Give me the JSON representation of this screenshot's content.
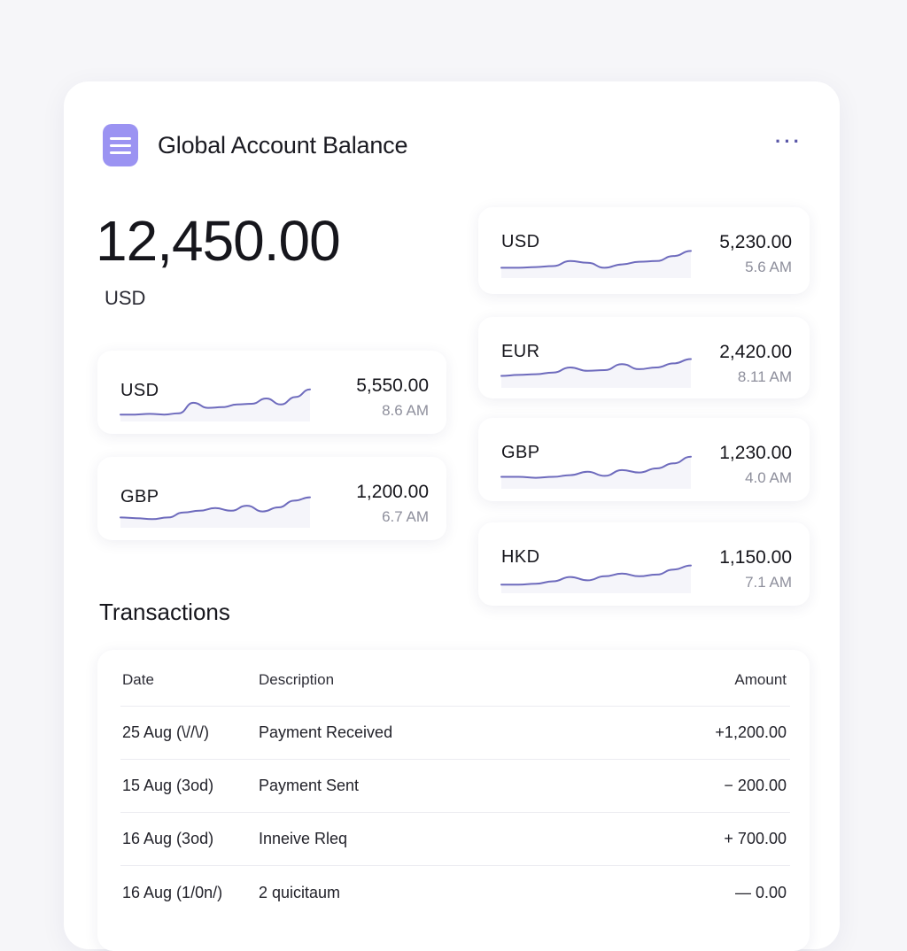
{
  "header": {
    "title": "Global Account Balance",
    "app_icon": "menu-icon",
    "more_icon": "more-horizontal-icon",
    "more_label": "···"
  },
  "balance": {
    "amount": "12,450.00",
    "currency": "USD"
  },
  "accent_color": "#9b93f2",
  "sparkline_color": "#6e6bbd",
  "currencies_left": [
    {
      "code": "USD",
      "amount": "5,550.00",
      "time": "8.6 AM",
      "trend": [
        0.1,
        0.1,
        0.12,
        0.1,
        0.14,
        0.45,
        0.3,
        0.32,
        0.4,
        0.42,
        0.58,
        0.4,
        0.62,
        0.85
      ]
    },
    {
      "code": "GBP",
      "amount": "1,200.00",
      "time": "6.7 AM",
      "trend": [
        0.2,
        0.18,
        0.15,
        0.2,
        0.35,
        0.4,
        0.48,
        0.4,
        0.55,
        0.38,
        0.5,
        0.7,
        0.8
      ]
    }
  ],
  "currencies_right": [
    {
      "code": "USD",
      "amount": "5,230.00",
      "time": "5.6 AM",
      "trend": [
        0.2,
        0.2,
        0.22,
        0.25,
        0.4,
        0.35,
        0.2,
        0.3,
        0.38,
        0.4,
        0.55,
        0.7
      ]
    },
    {
      "code": "EUR",
      "amount": "2,420.00",
      "time": "8.11 AM",
      "trend": [
        0.25,
        0.28,
        0.3,
        0.35,
        0.5,
        0.4,
        0.42,
        0.6,
        0.45,
        0.5,
        0.62,
        0.75
      ]
    },
    {
      "code": "GBP",
      "amount": "1,230.00",
      "time": "4.0 AM",
      "trend": [
        0.25,
        0.25,
        0.22,
        0.25,
        0.3,
        0.4,
        0.28,
        0.45,
        0.38,
        0.5,
        0.65,
        0.85
      ]
    },
    {
      "code": "HKD",
      "amount": "1,150.00",
      "time": "7.1 AM",
      "trend": [
        0.15,
        0.15,
        0.18,
        0.25,
        0.38,
        0.28,
        0.4,
        0.48,
        0.4,
        0.45,
        0.6,
        0.72
      ]
    }
  ],
  "transactions": {
    "title": "Transactions",
    "columns": {
      "date": "Date",
      "description": "Description",
      "amount": "Amount"
    },
    "rows": [
      {
        "date": "25 Aug (\\//\\/)",
        "description": "Payment Received",
        "amount": "+1,200.00"
      },
      {
        "date": "15 Aug (3od)",
        "description": "Payment Sent",
        "amount": "− 200.00"
      },
      {
        "date": "16 Aug (3od)",
        "description": "Inneive Rleq",
        "amount": "+ 700.00"
      },
      {
        "date": "16 Aug (1/0n/)",
        "description": "2 quicitaum",
        "amount": "— 0.00"
      }
    ]
  }
}
